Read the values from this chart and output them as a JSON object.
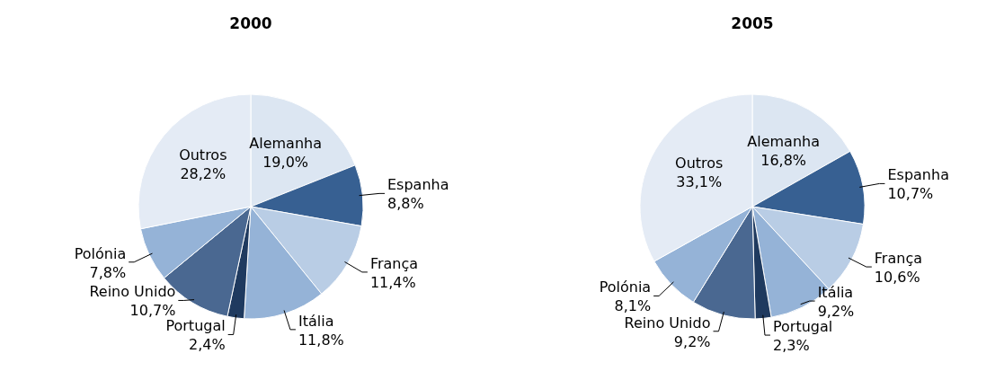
{
  "chart_data": [
    {
      "type": "pie",
      "title": "2000",
      "categories": [
        "Alemanha",
        "Espanha",
        "França",
        "Itália",
        "Portugal",
        "Reino Unido",
        "Polónia",
        "Outros"
      ],
      "values": [
        19.0,
        8.8,
        11.4,
        11.8,
        2.4,
        10.7,
        7.8,
        28.2
      ],
      "value_labels": [
        "19,0%",
        "8,8%",
        "11,4%",
        "11,8%",
        "2,4%",
        "10,7%",
        "7,8%",
        "28,2%"
      ],
      "colors": [
        "#dce6f2",
        "#376092",
        "#b9cde5",
        "#95b3d7",
        "#1f3a5f",
        "#4a6891",
        "#95b3d7",
        "#e4ebf5"
      ]
    },
    {
      "type": "pie",
      "title": "2005",
      "categories": [
        "Alemanha",
        "Espanha",
        "França",
        "Itália",
        "Portugal",
        "Reino Unido",
        "Polónia",
        "Outros"
      ],
      "values": [
        16.8,
        10.7,
        10.6,
        9.2,
        2.3,
        9.2,
        8.1,
        33.1
      ],
      "value_labels": [
        "16,8%",
        "10,7%",
        "10,6%",
        "9,2%",
        "2,3%",
        "9,2%",
        "8,1%",
        "33,1%"
      ],
      "colors": [
        "#dce6f2",
        "#376092",
        "#b9cde5",
        "#95b3d7",
        "#1f3a5f",
        "#4a6891",
        "#95b3d7",
        "#e4ebf5"
      ]
    }
  ]
}
